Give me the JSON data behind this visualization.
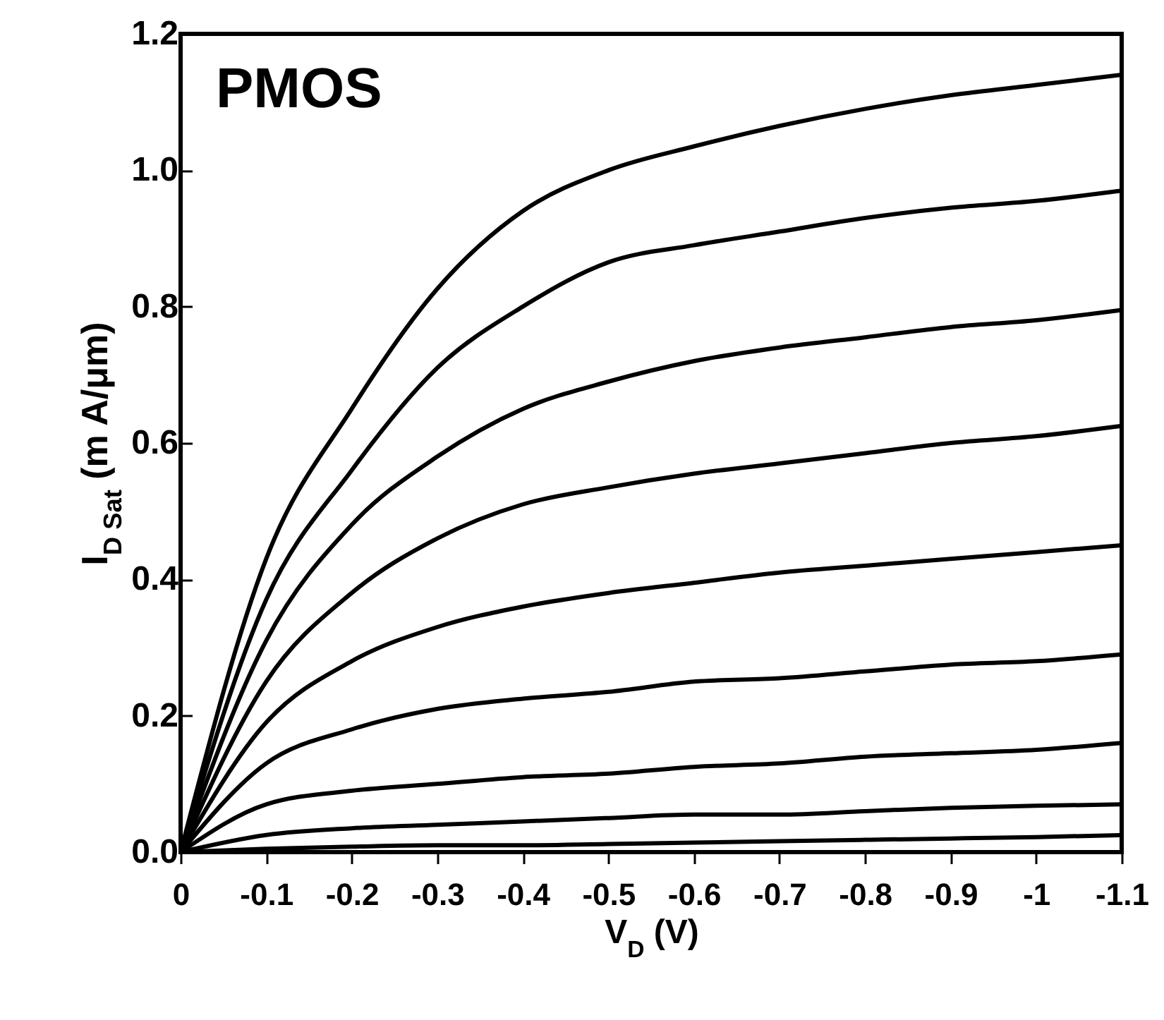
{
  "chart_data": {
    "type": "line",
    "xlabel": "V$_{D}$ (V)",
    "ylabel": "I$_{D Sat}$ (m A/μm)",
    "annotations": [
      "PMOS"
    ],
    "x": [
      0,
      -0.1,
      -0.2,
      -0.3,
      -0.4,
      -0.5,
      -0.6,
      -0.7,
      -0.8,
      -0.9,
      -1.0,
      -1.1
    ],
    "series": [
      {
        "color": "#000000",
        "values": [
          0,
          0.43,
          0.65,
          0.826,
          0.94,
          1.0,
          1.035,
          1.065,
          1.09,
          1.11,
          1.125,
          1.14
        ]
      },
      {
        "color": "#000000",
        "values": [
          0,
          0.37,
          0.56,
          0.71,
          0.8,
          0.865,
          0.89,
          0.91,
          0.93,
          0.945,
          0.955,
          0.97
        ]
      },
      {
        "color": "#000000",
        "values": [
          0,
          0.31,
          0.48,
          0.58,
          0.65,
          0.69,
          0.72,
          0.74,
          0.755,
          0.77,
          0.78,
          0.795
        ]
      },
      {
        "color": "#000000",
        "values": [
          0,
          0.25,
          0.38,
          0.46,
          0.51,
          0.535,
          0.555,
          0.57,
          0.585,
          0.6,
          0.61,
          0.625
        ]
      },
      {
        "color": "#000000",
        "values": [
          0,
          0.19,
          0.28,
          0.33,
          0.36,
          0.38,
          0.395,
          0.41,
          0.42,
          0.43,
          0.44,
          0.45
        ]
      },
      {
        "color": "#000000",
        "values": [
          0,
          0.13,
          0.18,
          0.21,
          0.225,
          0.235,
          0.25,
          0.255,
          0.265,
          0.275,
          0.28,
          0.29
        ]
      },
      {
        "color": "#000000",
        "values": [
          0,
          0.07,
          0.09,
          0.1,
          0.11,
          0.115,
          0.125,
          0.13,
          0.14,
          0.145,
          0.15,
          0.16
        ]
      },
      {
        "color": "#000000",
        "values": [
          0,
          0.025,
          0.035,
          0.04,
          0.045,
          0.05,
          0.055,
          0.055,
          0.06,
          0.065,
          0.068,
          0.07
        ]
      },
      {
        "color": "#000000",
        "values": [
          0,
          0.005,
          0.008,
          0.01,
          0.01,
          0.012,
          0.014,
          0.016,
          0.018,
          0.02,
          0.022,
          0.025
        ]
      }
    ],
    "xlim": [
      0,
      -1.1
    ],
    "xticks": [
      0,
      -0.1,
      -0.2,
      -0.3,
      -0.4,
      -0.5,
      -0.6,
      -0.7,
      -0.8,
      -0.9,
      -1,
      -1.1
    ],
    "ylim": [
      0,
      1.2
    ],
    "yticks": [
      {
        "value": 0,
        "label": "0.0"
      },
      {
        "value": 0.2,
        "label": "0.2"
      },
      {
        "value": 0.4,
        "label": "0.4"
      },
      {
        "value": 0.6,
        "label": "0.6"
      },
      {
        "value": 0.8,
        "label": "0.8"
      },
      {
        "value": 1.0,
        "label": "1.0"
      },
      {
        "value": 1.2,
        "label": "1.2"
      }
    ],
    "grid": false,
    "legend": false,
    "marker": "none",
    "line_style": "solid"
  }
}
